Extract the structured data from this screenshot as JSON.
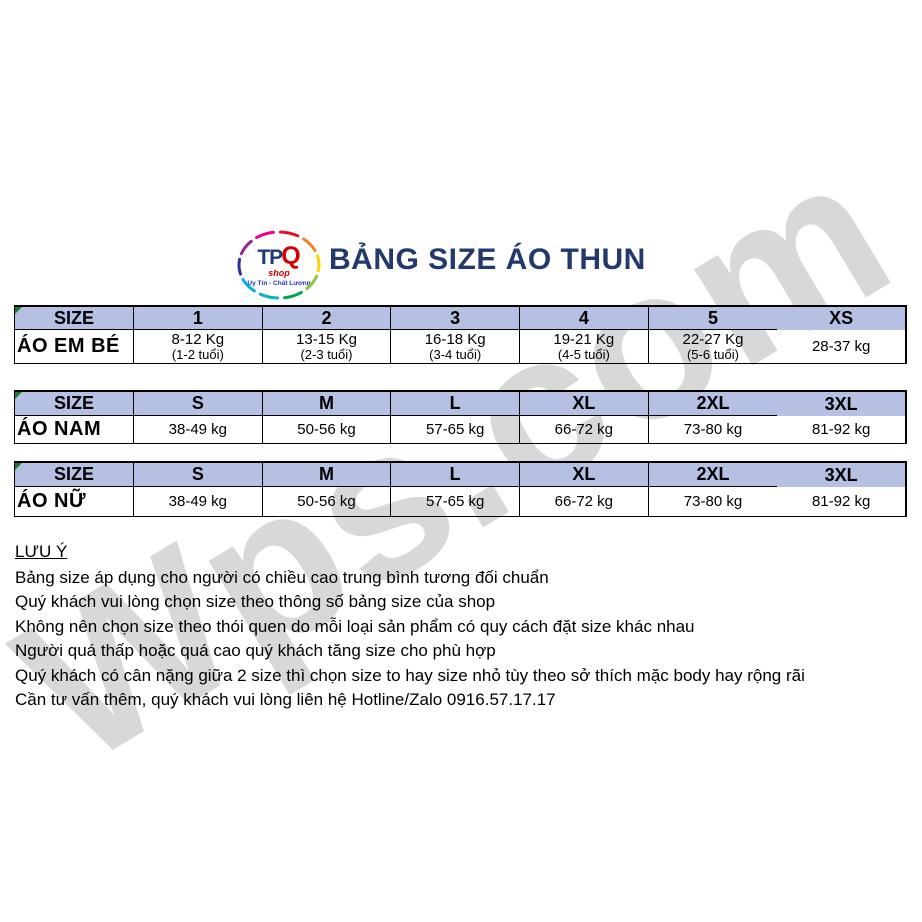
{
  "title": "BẢNG SIZE ÁO THUN",
  "watermark": {
    "text": "Wps.com"
  },
  "logo": {
    "brand": "TPQ",
    "brand_tp": "TP",
    "brand_q": "Q",
    "shop": "shop",
    "tagline": "Uy Tín - Chất Lượng",
    "ring_colors": [
      "#e8112d",
      "#f58220",
      "#ffd200",
      "#8cc63f",
      "#00a651",
      "#00b7bd",
      "#00aeef",
      "#2e3192",
      "#92278f",
      "#ec008c"
    ]
  },
  "colors": {
    "header-fill": "#b6c0e2",
    "title": "#24396b",
    "watermark": "#d8d8d8",
    "triangle": "#1c7a28",
    "logo-navy": "#1f3a78",
    "logo-red": "#d50000",
    "logo-blue": "#2233cc"
  },
  "tables": [
    {
      "title_cell": "SIZE",
      "row_label": "ÁO EM BÉ",
      "columns": [
        "1",
        "2",
        "3",
        "4",
        "5",
        "XS"
      ],
      "cells": [
        {
          "main": "8-12 Kg",
          "sub": "(1-2 tuổi)"
        },
        {
          "main": "13-15 Kg",
          "sub": "(2-3 tuổi)"
        },
        {
          "main": "16-18 Kg",
          "sub": "(3-4 tuổi)"
        },
        {
          "main": "19-21 Kg",
          "sub": "(4-5 tuổi)"
        },
        {
          "main": "22-27 Kg",
          "sub": "(5-6 tuổi)"
        },
        {
          "main": "28-37 kg",
          "sub": ""
        }
      ]
    },
    {
      "title_cell": "SIZE",
      "row_label": "ÁO NAM",
      "columns": [
        "S",
        "M",
        "L",
        "XL",
        "2XL",
        "3XL"
      ],
      "cells": [
        {
          "main": "38-49 kg",
          "sub": ""
        },
        {
          "main": "50-56 kg",
          "sub": ""
        },
        {
          "main": "57-65 kg",
          "sub": ""
        },
        {
          "main": "66-72 kg",
          "sub": ""
        },
        {
          "main": "73-80 kg",
          "sub": ""
        },
        {
          "main": "81-92 kg",
          "sub": ""
        }
      ]
    },
    {
      "title_cell": "SIZE",
      "row_label": "ÁO NỮ",
      "columns": [
        "S",
        "M",
        "L",
        "XL",
        "2XL",
        "3XL"
      ],
      "cells": [
        {
          "main": "38-49 kg",
          "sub": ""
        },
        {
          "main": "50-56 kg",
          "sub": ""
        },
        {
          "main": "57-65 kg",
          "sub": ""
        },
        {
          "main": "66-72 kg",
          "sub": ""
        },
        {
          "main": "73-80 kg",
          "sub": ""
        },
        {
          "main": "81-92 kg",
          "sub": ""
        }
      ]
    }
  ],
  "notes": {
    "heading": "LƯU Ý",
    "lines": [
      "Bảng size áp dụng cho người có chiều cao trung bình tương đối chuẩn",
      "Quý khách vui lòng chọn size theo thông số bảng size của shop",
      "Không nên chọn size theo thói quen do mỗi loại sản phẩm có quy cách đặt size khác nhau",
      "Người quá thấp hoặc quá cao quý khách tăng size cho phù hợp",
      "Quý khách có cân nặng giữa 2 size thì chọn size to hay size nhỏ tùy theo sở thích mặc body hay rộng rãi",
      "Cần tư vấn thêm, quý khách vui lòng liên hệ Hotline/Zalo 0916.57.17.17"
    ]
  }
}
